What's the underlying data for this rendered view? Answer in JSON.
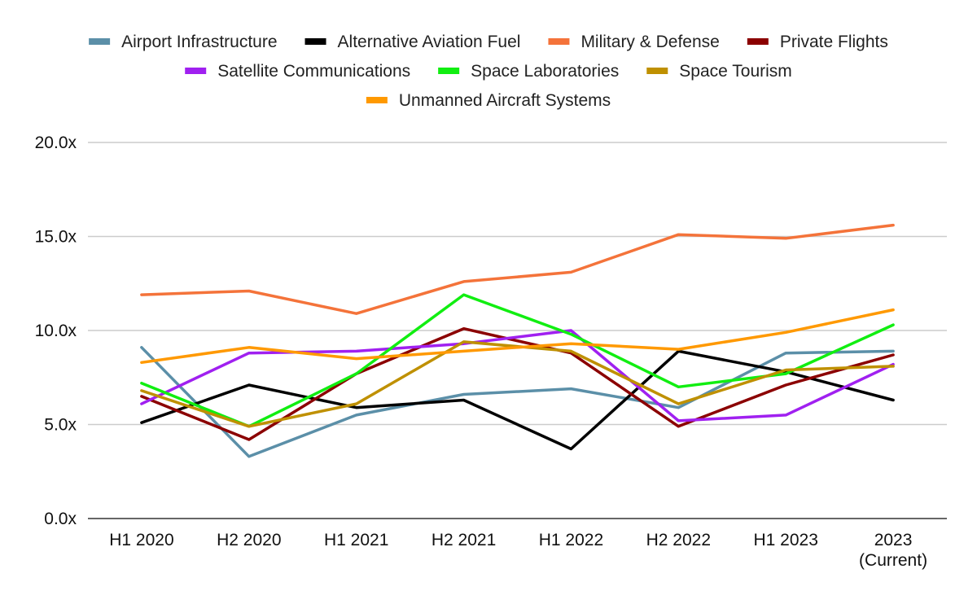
{
  "chart_data": {
    "type": "line",
    "title": "",
    "xlabel": "",
    "ylabel": "",
    "categories": [
      [
        "H1 2020"
      ],
      [
        "H2 2020"
      ],
      [
        "H1 2021"
      ],
      [
        "H2 2021"
      ],
      [
        "H1 2022"
      ],
      [
        "H2 2022"
      ],
      [
        "H1 2023"
      ],
      [
        "2023",
        "(Current)"
      ]
    ],
    "ylim": [
      0,
      20
    ],
    "yticks": [
      {
        "value": 0,
        "label": "0.0x"
      },
      {
        "value": 5,
        "label": "5.0x"
      },
      {
        "value": 10,
        "label": "10.0x"
      },
      {
        "value": 15,
        "label": "15.0x"
      },
      {
        "value": 20,
        "label": "20.0x"
      }
    ],
    "grid": true,
    "legend_position": "top",
    "series": [
      {
        "name": "Airport Infrastructure",
        "color": "#5b8fa8",
        "values": [
          9.1,
          3.3,
          5.5,
          6.6,
          6.9,
          5.9,
          8.8,
          8.9
        ]
      },
      {
        "name": "Alternative Aviation Fuel",
        "color": "#000000",
        "values": [
          5.1,
          7.1,
          5.9,
          6.3,
          3.7,
          8.9,
          7.8,
          6.3
        ]
      },
      {
        "name": "Military & Defense",
        "color": "#f4733a",
        "values": [
          11.9,
          12.1,
          10.9,
          12.6,
          13.1,
          15.1,
          14.9,
          15.6
        ]
      },
      {
        "name": "Private Flights",
        "color": "#8b0000",
        "values": [
          6.5,
          4.2,
          7.7,
          10.1,
          8.8,
          4.9,
          7.1,
          8.7
        ]
      },
      {
        "name": "Satellite Communications",
        "color": "#a020f0",
        "values": [
          6.1,
          8.8,
          8.9,
          9.3,
          10.0,
          5.2,
          5.5,
          8.2
        ]
      },
      {
        "name": "Space Laboratories",
        "color": "#11ee11",
        "values": [
          7.2,
          4.9,
          7.7,
          11.9,
          9.8,
          7.0,
          7.7,
          10.3
        ]
      },
      {
        "name": "Space Tourism",
        "color": "#bf9000",
        "values": [
          6.8,
          4.9,
          6.1,
          9.4,
          8.9,
          6.1,
          7.9,
          8.1
        ]
      },
      {
        "name": "Unmanned Aircraft Systems",
        "color": "#ff9900",
        "values": [
          8.3,
          9.1,
          8.5,
          8.9,
          9.3,
          9.0,
          9.9,
          11.1
        ]
      }
    ]
  }
}
